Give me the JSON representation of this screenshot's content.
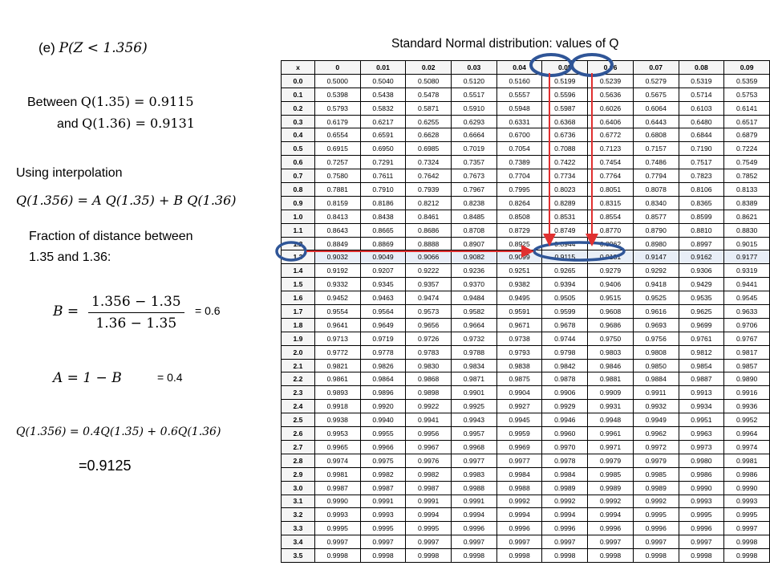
{
  "work": {
    "part_label": "(e) ",
    "part_expr": "P(Z < 1.356)",
    "between_word": "Between ",
    "between_expr": "Q(1.35) = 0.9115",
    "and_word": "and ",
    "and_expr": "Q(1.36) = 0.9131",
    "interp_label": "Using interpolation",
    "interp_expr": "Q(1.356) = A Q(1.35) + B Q(1.36)",
    "fraction_label_1": "Fraction of distance between",
    "fraction_label_2": "1.35 and 1.36:",
    "b_lhs": "B =",
    "b_num": "1.356 − 1.35",
    "b_den": "1.36 − 1.35",
    "b_result": "= 0.6",
    "a_expr": "A = 1 − B",
    "a_result": "= 0.4",
    "final_expr": "Q(1.356) = 0.4Q(1.35) + 0.6Q(1.36)",
    "answer": "=0.9125"
  },
  "table": {
    "title": "Standard Normal distribution: values of Q",
    "headers": [
      "x",
      "0",
      "0.01",
      "0.02",
      "0.03",
      "0.04",
      "0.05",
      "0.06",
      "0.07",
      "0.08",
      "0.09"
    ],
    "rows": [
      {
        "x": "0.0",
        "v": [
          "0.5000",
          "0.5040",
          "0.5080",
          "0.5120",
          "0.5160",
          "0.5199",
          "0.5239",
          "0.5279",
          "0.5319",
          "0.5359"
        ]
      },
      {
        "x": "0.1",
        "v": [
          "0.5398",
          "0.5438",
          "0.5478",
          "0.5517",
          "0.5557",
          "0.5596",
          "0.5636",
          "0.5675",
          "0.5714",
          "0.5753"
        ]
      },
      {
        "x": "0.2",
        "v": [
          "0.5793",
          "0.5832",
          "0.5871",
          "0.5910",
          "0.5948",
          "0.5987",
          "0.6026",
          "0.6064",
          "0.6103",
          "0.6141"
        ]
      },
      {
        "x": "0.3",
        "v": [
          "0.6179",
          "0.6217",
          "0.6255",
          "0.6293",
          "0.6331",
          "0.6368",
          "0.6406",
          "0.6443",
          "0.6480",
          "0.6517"
        ]
      },
      {
        "x": "0.4",
        "v": [
          "0.6554",
          "0.6591",
          "0.6628",
          "0.6664",
          "0.6700",
          "0.6736",
          "0.6772",
          "0.6808",
          "0.6844",
          "0.6879"
        ]
      },
      {
        "x": "0.5",
        "v": [
          "0.6915",
          "0.6950",
          "0.6985",
          "0.7019",
          "0.7054",
          "0.7088",
          "0.7123",
          "0.7157",
          "0.7190",
          "0.7224"
        ]
      },
      {
        "x": "0.6",
        "v": [
          "0.7257",
          "0.7291",
          "0.7324",
          "0.7357",
          "0.7389",
          "0.7422",
          "0.7454",
          "0.7486",
          "0.7517",
          "0.7549"
        ]
      },
      {
        "x": "0.7",
        "v": [
          "0.7580",
          "0.7611",
          "0.7642",
          "0.7673",
          "0.7704",
          "0.7734",
          "0.7764",
          "0.7794",
          "0.7823",
          "0.7852"
        ]
      },
      {
        "x": "0.8",
        "v": [
          "0.7881",
          "0.7910",
          "0.7939",
          "0.7967",
          "0.7995",
          "0.8023",
          "0.8051",
          "0.8078",
          "0.8106",
          "0.8133"
        ]
      },
      {
        "x": "0.9",
        "v": [
          "0.8159",
          "0.8186",
          "0.8212",
          "0.8238",
          "0.8264",
          "0.8289",
          "0.8315",
          "0.8340",
          "0.8365",
          "0.8389"
        ]
      },
      {
        "x": "1.0",
        "v": [
          "0.8413",
          "0.8438",
          "0.8461",
          "0.8485",
          "0.8508",
          "0.8531",
          "0.8554",
          "0.8577",
          "0.8599",
          "0.8621"
        ]
      },
      {
        "x": "1.1",
        "v": [
          "0.8643",
          "0.8665",
          "0.8686",
          "0.8708",
          "0.8729",
          "0.8749",
          "0.8770",
          "0.8790",
          "0.8810",
          "0.8830"
        ]
      },
      {
        "x": "1.2",
        "v": [
          "0.8849",
          "0.8869",
          "0.8888",
          "0.8907",
          "0.8925",
          "0.8944",
          "0.8962",
          "0.8980",
          "0.8997",
          "0.9015"
        ]
      },
      {
        "x": "1.3",
        "v": [
          "0.9032",
          "0.9049",
          "0.9066",
          "0.9082",
          "0.9099",
          "0.9115",
          "0.9131",
          "0.9147",
          "0.9162",
          "0.9177"
        ]
      },
      {
        "x": "1.4",
        "v": [
          "0.9192",
          "0.9207",
          "0.9222",
          "0.9236",
          "0.9251",
          "0.9265",
          "0.9279",
          "0.9292",
          "0.9306",
          "0.9319"
        ]
      },
      {
        "x": "1.5",
        "v": [
          "0.9332",
          "0.9345",
          "0.9357",
          "0.9370",
          "0.9382",
          "0.9394",
          "0.9406",
          "0.9418",
          "0.9429",
          "0.9441"
        ]
      },
      {
        "x": "1.6",
        "v": [
          "0.9452",
          "0.9463",
          "0.9474",
          "0.9484",
          "0.9495",
          "0.9505",
          "0.9515",
          "0.9525",
          "0.9535",
          "0.9545"
        ]
      },
      {
        "x": "1.7",
        "v": [
          "0.9554",
          "0.9564",
          "0.9573",
          "0.9582",
          "0.9591",
          "0.9599",
          "0.9608",
          "0.9616",
          "0.9625",
          "0.9633"
        ]
      },
      {
        "x": "1.8",
        "v": [
          "0.9641",
          "0.9649",
          "0.9656",
          "0.9664",
          "0.9671",
          "0.9678",
          "0.9686",
          "0.9693",
          "0.9699",
          "0.9706"
        ]
      },
      {
        "x": "1.9",
        "v": [
          "0.9713",
          "0.9719",
          "0.9726",
          "0.9732",
          "0.9738",
          "0.9744",
          "0.9750",
          "0.9756",
          "0.9761",
          "0.9767"
        ]
      },
      {
        "x": "2.0",
        "v": [
          "0.9772",
          "0.9778",
          "0.9783",
          "0.9788",
          "0.9793",
          "0.9798",
          "0.9803",
          "0.9808",
          "0.9812",
          "0.9817"
        ]
      },
      {
        "x": "2.1",
        "v": [
          "0.9821",
          "0.9826",
          "0.9830",
          "0.9834",
          "0.9838",
          "0.9842",
          "0.9846",
          "0.9850",
          "0.9854",
          "0.9857"
        ]
      },
      {
        "x": "2.2",
        "v": [
          "0.9861",
          "0.9864",
          "0.9868",
          "0.9871",
          "0.9875",
          "0.9878",
          "0.9881",
          "0.9884",
          "0.9887",
          "0.9890"
        ]
      },
      {
        "x": "2.3",
        "v": [
          "0.9893",
          "0.9896",
          "0.9898",
          "0.9901",
          "0.9904",
          "0.9906",
          "0.9909",
          "0.9911",
          "0.9913",
          "0.9916"
        ]
      },
      {
        "x": "2.4",
        "v": [
          "0.9918",
          "0.9920",
          "0.9922",
          "0.9925",
          "0.9927",
          "0.9929",
          "0.9931",
          "0.9932",
          "0.9934",
          "0.9936"
        ]
      },
      {
        "x": "2.5",
        "v": [
          "0.9938",
          "0.9940",
          "0.9941",
          "0.9943",
          "0.9945",
          "0.9946",
          "0.9948",
          "0.9949",
          "0.9951",
          "0.9952"
        ]
      },
      {
        "x": "2.6",
        "v": [
          "0.9953",
          "0.9955",
          "0.9956",
          "0.9957",
          "0.9959",
          "0.9960",
          "0.9961",
          "0.9962",
          "0.9963",
          "0.9964"
        ]
      },
      {
        "x": "2.7",
        "v": [
          "0.9965",
          "0.9966",
          "0.9967",
          "0.9968",
          "0.9969",
          "0.9970",
          "0.9971",
          "0.9972",
          "0.9973",
          "0.9974"
        ]
      },
      {
        "x": "2.8",
        "v": [
          "0.9974",
          "0.9975",
          "0.9976",
          "0.9977",
          "0.9977",
          "0.9978",
          "0.9979",
          "0.9979",
          "0.9980",
          "0.9981"
        ]
      },
      {
        "x": "2.9",
        "v": [
          "0.9981",
          "0.9982",
          "0.9982",
          "0.9983",
          "0.9984",
          "0.9984",
          "0.9985",
          "0.9985",
          "0.9986",
          "0.9986"
        ]
      },
      {
        "x": "3.0",
        "v": [
          "0.9987",
          "0.9987",
          "0.9987",
          "0.9988",
          "0.9988",
          "0.9989",
          "0.9989",
          "0.9989",
          "0.9990",
          "0.9990"
        ]
      },
      {
        "x": "3.1",
        "v": [
          "0.9990",
          "0.9991",
          "0.9991",
          "0.9991",
          "0.9992",
          "0.9992",
          "0.9992",
          "0.9992",
          "0.9993",
          "0.9993"
        ]
      },
      {
        "x": "3.2",
        "v": [
          "0.9993",
          "0.9993",
          "0.9994",
          "0.9994",
          "0.9994",
          "0.9994",
          "0.9994",
          "0.9995",
          "0.9995",
          "0.9995"
        ]
      },
      {
        "x": "3.3",
        "v": [
          "0.9995",
          "0.9995",
          "0.9995",
          "0.9996",
          "0.9996",
          "0.9996",
          "0.9996",
          "0.9996",
          "0.9996",
          "0.9997"
        ]
      },
      {
        "x": "3.4",
        "v": [
          "0.9997",
          "0.9997",
          "0.9997",
          "0.9997",
          "0.9997",
          "0.9997",
          "0.9997",
          "0.9997",
          "0.9997",
          "0.9998"
        ]
      },
      {
        "x": "3.5",
        "v": [
          "0.9998",
          "0.9998",
          "0.9998",
          "0.9998",
          "0.9998",
          "0.9998",
          "0.9998",
          "0.9998",
          "0.9998",
          "0.9998"
        ]
      }
    ],
    "highlight": {
      "row": "1.3",
      "columns": [
        "0.05",
        "0.06"
      ]
    }
  },
  "colors": {
    "circle": "#2f5597",
    "arrow": "#e03030",
    "row_highlight": "#e8eef7"
  }
}
